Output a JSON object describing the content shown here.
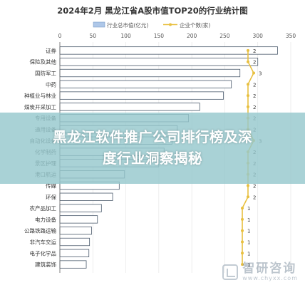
{
  "chart_data": {
    "type": "bar",
    "orientation": "horizontal",
    "title": "2024年2月 黑龙江省A股市值TOP20的行业统计图",
    "categories": [
      "证券",
      "保险及其他",
      "国防军工",
      "中药",
      "种植业与林业",
      "煤炭开采加工",
      "专用设备",
      "通用设备",
      "自动化设备",
      "化学制药",
      "景区护理",
      "港口航运",
      "传媒",
      "环保",
      "农产品加工",
      "电力设备",
      "公路铁路运输",
      "非汽车交运",
      "电子化学品",
      "建筑装饰"
    ],
    "series": [
      {
        "name": "行业总市值(亿元)",
        "axis": "bottom",
        "values": [
          330,
          300,
          273,
          260,
          248,
          212,
          195,
          178,
          170,
          158,
          150,
          98,
          90,
          80,
          63,
          57,
          48,
          45,
          44,
          40
        ],
        "color": "#aec7e8"
      },
      {
        "name": "企业个数(家)",
        "axis": "top",
        "values": [
          2,
          2,
          3,
          2,
          2,
          2,
          2,
          2,
          3,
          2,
          2,
          2,
          2,
          2,
          1,
          1,
          1,
          1,
          1,
          1
        ],
        "color": "#e8c040"
      }
    ],
    "x_ticks": [
      "0",
      "50",
      "100",
      "150",
      "200",
      "250",
      "300",
      "350"
    ],
    "xlim": [
      0,
      350
    ],
    "grid": true,
    "legend_position": "top"
  },
  "banner": {
    "line1": "黑龙江软件推广公司排行榜及深",
    "line2": "度行业洞察揭秘"
  },
  "watermark": {
    "name": "智研咨询",
    "url": "www.chyxx.com"
  }
}
